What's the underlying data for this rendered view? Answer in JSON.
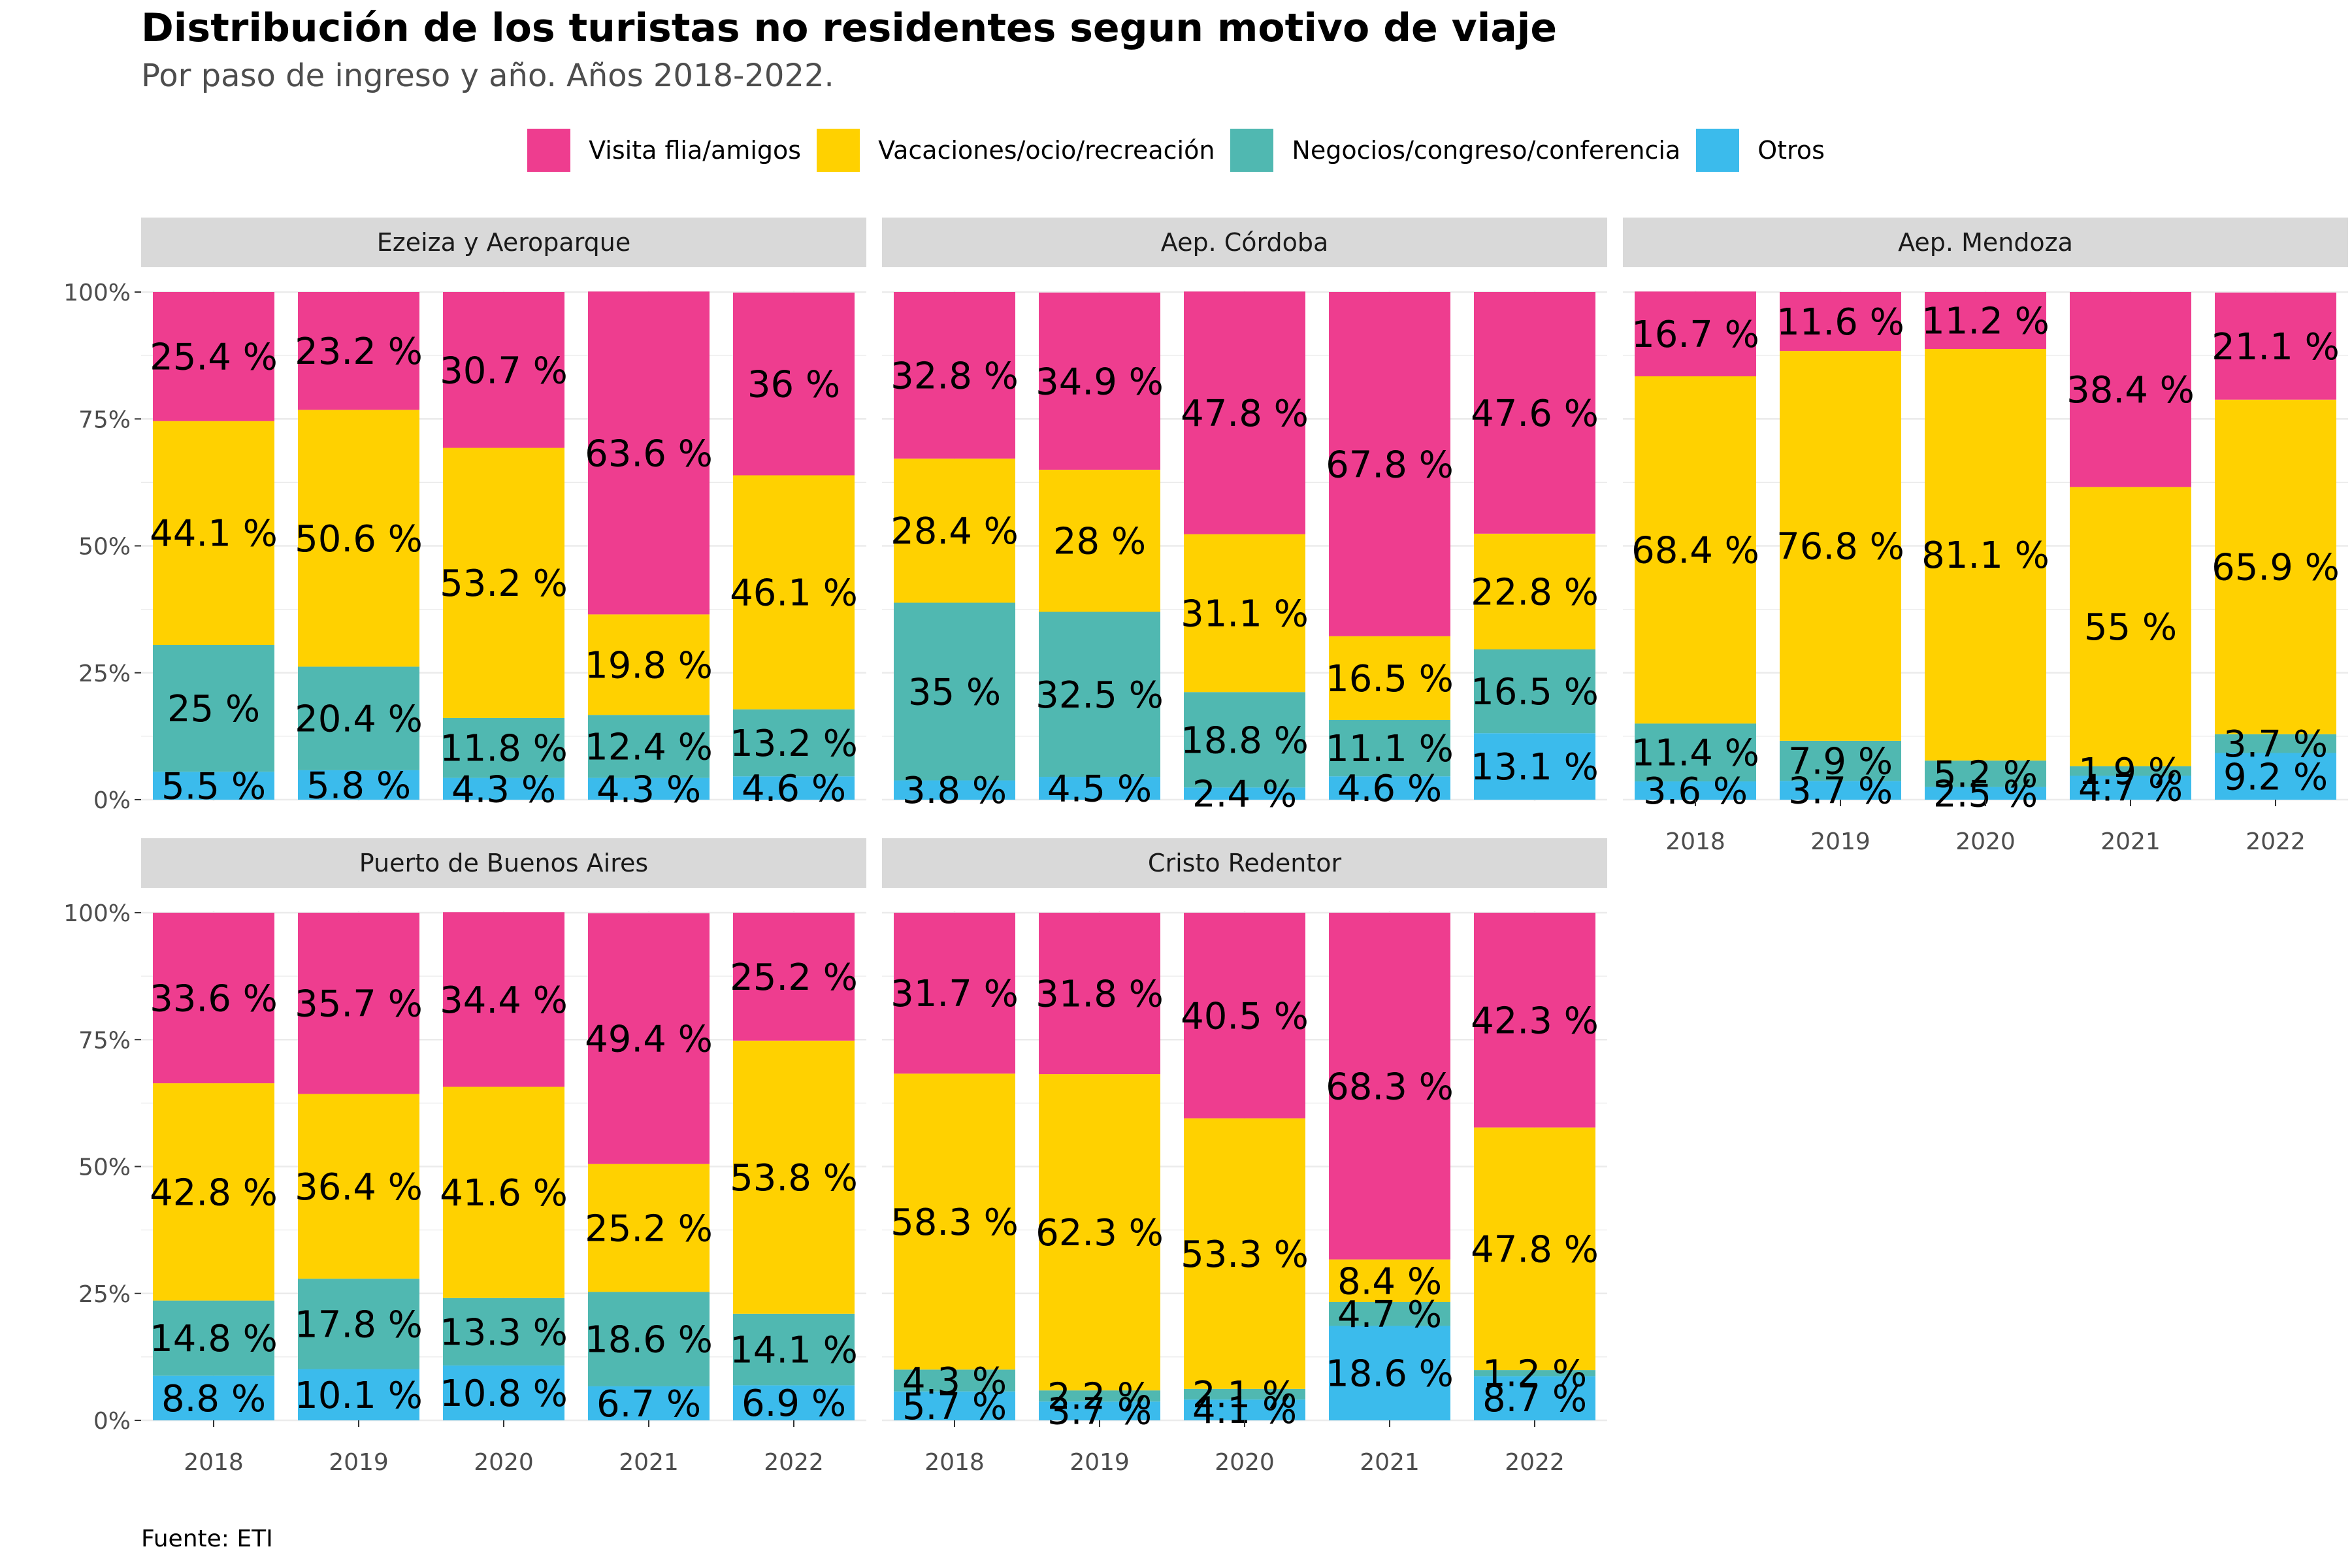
{
  "title": "Distribución de los turistas no residentes segun motivo de viaje",
  "subtitle": "Por paso de ingreso y año. Años 2018-2022.",
  "caption": "Fuente: ETI",
  "colors": {
    "Visita flia/amigos": "#EE3D8F",
    "Vacaciones/ocio/recreación": "#FFD100",
    "Negocios/congreso/conferencia": "#50B8B1",
    "Otros": "#3BBBEC"
  },
  "chart_data": {
    "type": "bar",
    "stacked": true,
    "percent": true,
    "categories": [
      "2018",
      "2019",
      "2020",
      "2021",
      "2022"
    ],
    "y_ticks": [
      "0%",
      "25%",
      "50%",
      "75%",
      "100%"
    ],
    "ylim": [
      0,
      100
    ],
    "legend": [
      "Visita flia/amigos",
      "Vacaciones/ocio/recreación",
      "Negocios/congreso/conferencia",
      "Otros"
    ],
    "legend_position": "top",
    "stack_order_bottom_to_top": [
      "Otros",
      "Negocios/congreso/conferencia",
      "Vacaciones/ocio/recreación",
      "Visita flia/amigos"
    ],
    "panels": [
      {
        "name": "Ezeiza y Aeroparque",
        "series": [
          {
            "name": "Visita flia/amigos",
            "values": [
              25.4,
              23.2,
              30.7,
              63.6,
              36
            ],
            "labels": [
              "25.4 %",
              "23.2 %",
              "30.7 %",
              "63.6 %",
              "36 %"
            ]
          },
          {
            "name": "Vacaciones/ocio/recreación",
            "values": [
              44.1,
              50.6,
              53.2,
              19.8,
              46.1
            ],
            "labels": [
              "44.1 %",
              "50.6 %",
              "53.2 %",
              "19.8 %",
              "46.1 %"
            ]
          },
          {
            "name": "Negocios/congreso/conferencia",
            "values": [
              25,
              20.4,
              11.8,
              12.4,
              13.2
            ],
            "labels": [
              "25 %",
              "20.4 %",
              "11.8 %",
              "12.4 %",
              "13.2 %"
            ]
          },
          {
            "name": "Otros",
            "values": [
              5.5,
              5.8,
              4.3,
              4.3,
              4.6
            ],
            "labels": [
              "5.5 %",
              "5.8 %",
              "4.3 %",
              "4.3 %",
              "4.6 %"
            ]
          }
        ]
      },
      {
        "name": "Aep. Córdoba",
        "series": [
          {
            "name": "Visita flia/amigos",
            "values": [
              32.8,
              34.9,
              47.8,
              67.8,
              47.6
            ],
            "labels": [
              "32.8 %",
              "34.9 %",
              "47.8 %",
              "67.8 %",
              "47.6 %"
            ]
          },
          {
            "name": "Vacaciones/ocio/recreación",
            "values": [
              28.4,
              28,
              31.1,
              16.5,
              22.8
            ],
            "labels": [
              "28.4 %",
              "28 %",
              "31.1 %",
              "16.5 %",
              "22.8 %"
            ]
          },
          {
            "name": "Negocios/congreso/conferencia",
            "values": [
              35,
              32.5,
              18.8,
              11.1,
              16.5
            ],
            "labels": [
              "35 %",
              "32.5 %",
              "18.8 %",
              "11.1 %",
              "16.5 %"
            ]
          },
          {
            "name": "Otros",
            "values": [
              3.8,
              4.5,
              2.4,
              4.6,
              13.1
            ],
            "labels": [
              "3.8 %",
              "4.5 %",
              "2.4 %",
              "4.6 %",
              "13.1 %"
            ]
          }
        ]
      },
      {
        "name": "Aep. Mendoza",
        "series": [
          {
            "name": "Visita flia/amigos",
            "values": [
              16.7,
              11.6,
              11.2,
              38.4,
              21.1
            ],
            "labels": [
              "16.7 %",
              "11.6 %",
              "11.2 %",
              "38.4 %",
              "21.1 %"
            ]
          },
          {
            "name": "Vacaciones/ocio/recreación",
            "values": [
              68.4,
              76.8,
              81.1,
              55,
              65.9
            ],
            "labels": [
              "68.4 %",
              "76.8 %",
              "81.1 %",
              "55 %",
              "65.9 %"
            ]
          },
          {
            "name": "Negocios/congreso/conferencia",
            "values": [
              11.4,
              7.9,
              5.2,
              1.9,
              3.7
            ],
            "labels": [
              "11.4 %",
              "7.9 %",
              "5.2 %",
              "1.9 %",
              "3.7 %"
            ]
          },
          {
            "name": "Otros",
            "values": [
              3.6,
              3.7,
              2.5,
              4.7,
              9.2
            ],
            "labels": [
              "3.6 %",
              "3.7 %",
              "2.5 %",
              "4.7 %",
              "9.2 %"
            ]
          }
        ]
      },
      {
        "name": "Puerto de Buenos Aires",
        "series": [
          {
            "name": "Visita flia/amigos",
            "values": [
              33.6,
              35.7,
              34.4,
              49.4,
              25.2
            ],
            "labels": [
              "33.6 %",
              "35.7 %",
              "34.4 %",
              "49.4 %",
              "25.2 %"
            ]
          },
          {
            "name": "Vacaciones/ocio/recreación",
            "values": [
              42.8,
              36.4,
              41.6,
              25.2,
              53.8
            ],
            "labels": [
              "42.8 %",
              "36.4 %",
              "41.6 %",
              "25.2 %",
              "53.8 %"
            ]
          },
          {
            "name": "Negocios/congreso/conferencia",
            "values": [
              14.8,
              17.8,
              13.3,
              18.6,
              14.1
            ],
            "labels": [
              "14.8 %",
              "17.8 %",
              "13.3 %",
              "18.6 %",
              "14.1 %"
            ]
          },
          {
            "name": "Otros",
            "values": [
              8.8,
              10.1,
              10.8,
              6.7,
              6.9
            ],
            "labels": [
              "8.8 %",
              "10.1 %",
              "10.8 %",
              "6.7 %",
              "6.9 %"
            ]
          }
        ]
      },
      {
        "name": "Cristo Redentor",
        "series": [
          {
            "name": "Visita flia/amigos",
            "values": [
              31.7,
              31.8,
              40.5,
              68.3,
              42.3
            ],
            "labels": [
              "31.7 %",
              "31.8 %",
              "40.5 %",
              "68.3 %",
              "42.3 %"
            ]
          },
          {
            "name": "Vacaciones/ocio/recreación",
            "values": [
              58.3,
              62.3,
              53.3,
              8.4,
              47.8
            ],
            "labels": [
              "58.3 %",
              "62.3 %",
              "53.3 %",
              "8.4 %",
              "47.8 %"
            ]
          },
          {
            "name": "Negocios/congreso/conferencia",
            "values": [
              4.3,
              2.2,
              2.1,
              4.7,
              1.2
            ],
            "labels": [
              "4.3 %",
              "2.2 %",
              "2.1 %",
              "4.7 %",
              "1.2 %"
            ]
          },
          {
            "name": "Otros",
            "values": [
              5.7,
              3.7,
              4.1,
              18.6,
              8.7
            ],
            "labels": [
              "5.7 %",
              "3.7 %",
              "4.1 %",
              "18.6 %",
              "8.7 %"
            ]
          }
        ]
      }
    ]
  }
}
